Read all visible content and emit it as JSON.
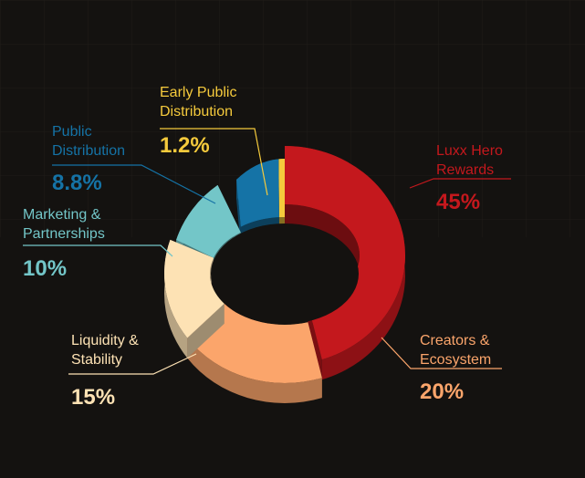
{
  "chart_data": {
    "type": "pie",
    "series": [
      {
        "label_lines": [
          "Luxx Hero",
          "Rewards"
        ],
        "percent_label": "45%",
        "value": 45,
        "color": "#c4181d"
      },
      {
        "label_lines": [
          "Creators &",
          "Ecosystem"
        ],
        "percent_label": "20%",
        "value": 20,
        "color": "#fba56b"
      },
      {
        "label_lines": [
          "Liquidity &",
          "Stability"
        ],
        "percent_label": "15%",
        "value": 15,
        "color": "#fde2b4"
      },
      {
        "label_lines": [
          "Marketing &",
          "Partnerships"
        ],
        "percent_label": "10%",
        "value": 10,
        "color": "#73c6c8"
      },
      {
        "label_lines": [
          "Public",
          "Distribution"
        ],
        "percent_label": "8.8%",
        "value": 8.8,
        "color": "#1573a6"
      },
      {
        "label_lines": [
          "Early Public",
          "Distribution"
        ],
        "percent_label": "1.2%",
        "value": 1.2,
        "color": "#f5ca3c"
      }
    ]
  }
}
